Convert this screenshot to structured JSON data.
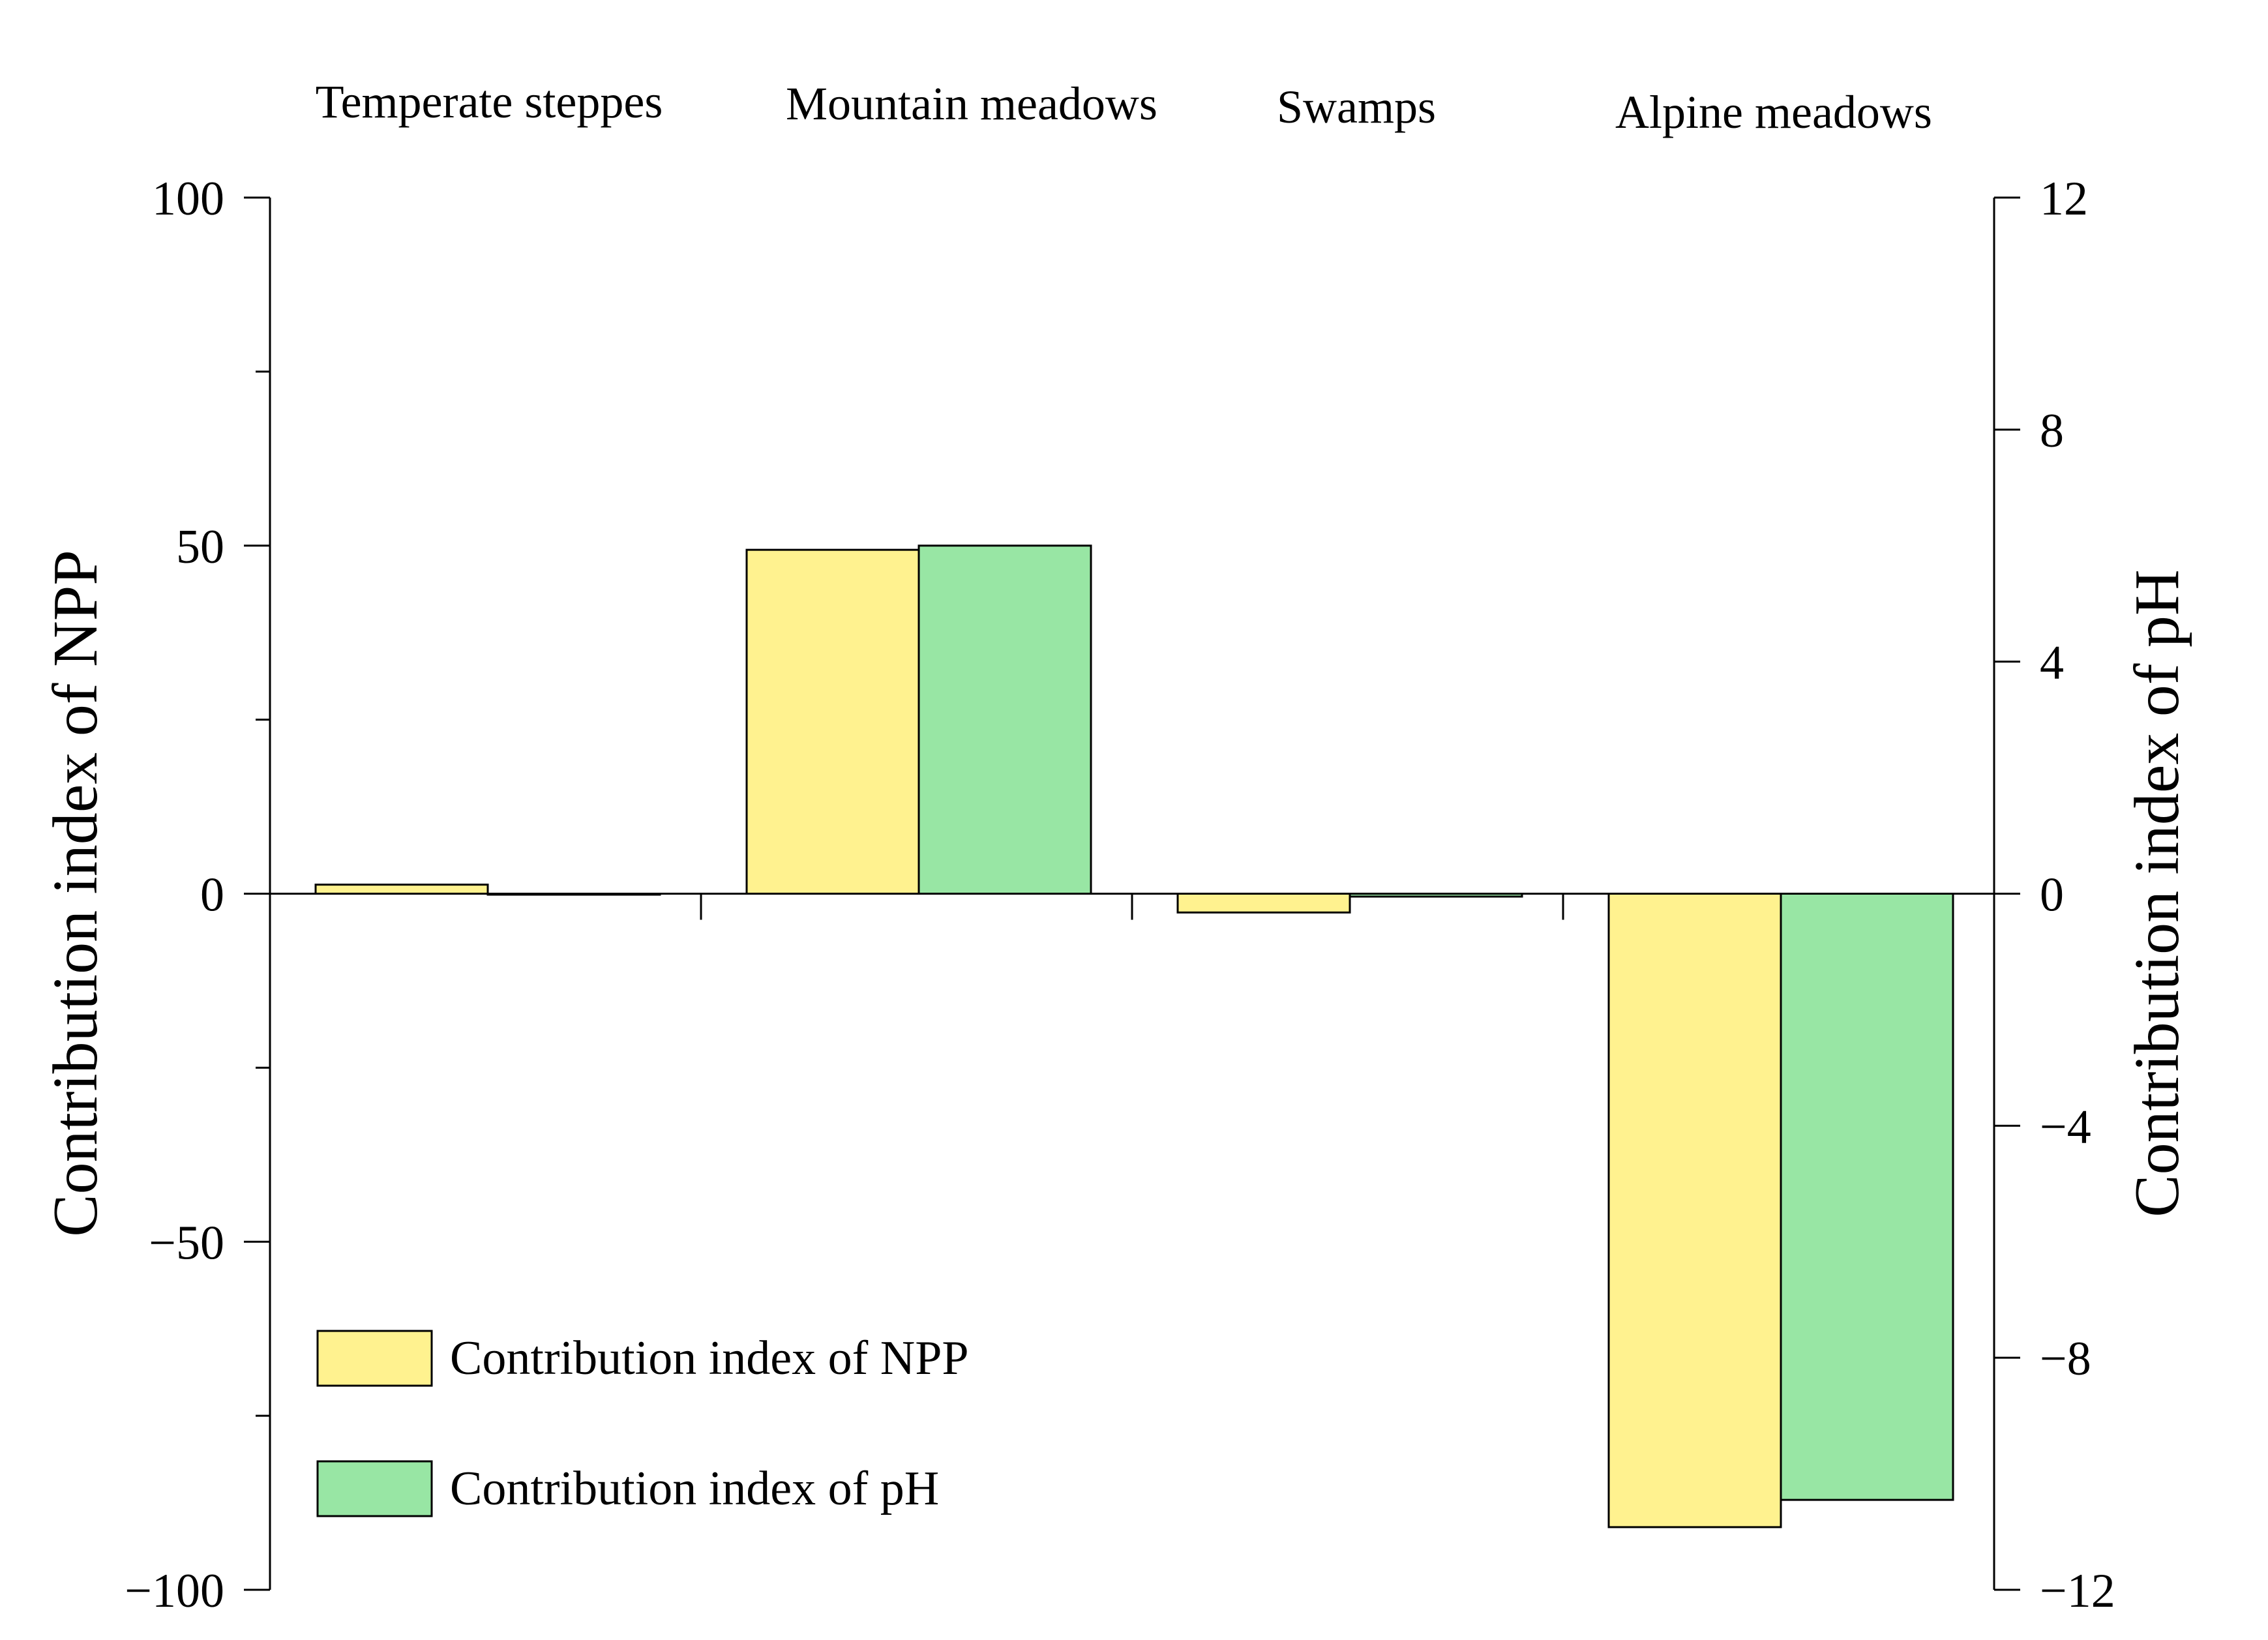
{
  "chart_data": {
    "type": "bar",
    "categories": [
      "Temperate steppes",
      "Mountain meadows",
      "Swamps",
      "Alpine meadows"
    ],
    "series": [
      {
        "name": "Contribution index of NPP",
        "axis": "left",
        "color": "#FFF28F",
        "values": [
          1.3,
          49.4,
          -2.7,
          -91.0
        ]
      },
      {
        "name": "Contribution index of pH",
        "axis": "right",
        "color": "#98E6A4",
        "values": [
          0.0,
          6.0,
          -0.05,
          -10.45
        ]
      }
    ],
    "left_axis": {
      "label": "Contribution index of NPP",
      "ylim": [
        -100,
        100
      ],
      "ticks": [
        -100,
        -50,
        0,
        50,
        100
      ],
      "tick_labels": [
        "−100",
        "−50",
        "0",
        "50",
        "100"
      ],
      "minor_ticks": [
        -75,
        -25,
        25,
        75
      ]
    },
    "right_axis": {
      "label": "Contribution index of pH",
      "ylim": [
        -12,
        12
      ],
      "ticks": [
        -12,
        -8,
        -4,
        0,
        4,
        8,
        12
      ],
      "tick_labels": [
        "−12",
        "−8",
        "−4",
        "0",
        "4",
        "8",
        "12"
      ]
    },
    "legend": {
      "position": "bottom-left",
      "entries": [
        "Contribution index of NPP",
        "Contribution index of pH"
      ]
    },
    "grid": false,
    "bar_edge_color": "#000000",
    "axis_color": "#000000"
  }
}
